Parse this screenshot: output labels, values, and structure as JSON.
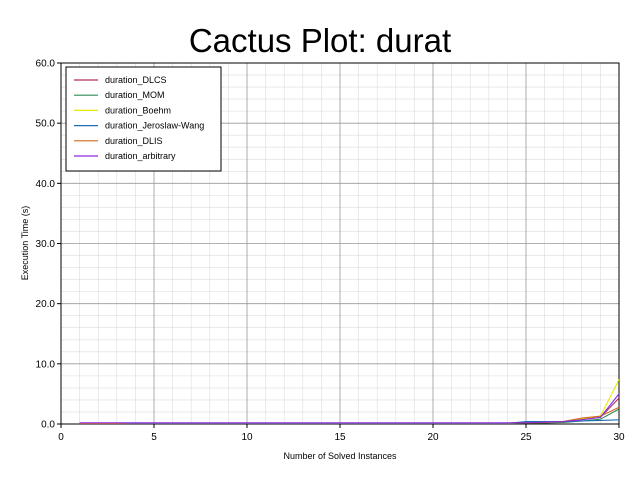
{
  "chart_data": {
    "type": "line",
    "title": "Cactus Plot: durat",
    "xlabel": "Number of Solved Instances",
    "ylabel": "Execution Time (s)",
    "xlim": [
      0,
      30
    ],
    "ylim": [
      0,
      60
    ],
    "xticks": [
      0,
      5,
      10,
      15,
      20,
      25,
      30
    ],
    "xtick_labels": [
      "0",
      "5",
      "10",
      "15",
      "20",
      "25",
      "30"
    ],
    "yticks": [
      0,
      10,
      20,
      30,
      40,
      50,
      60
    ],
    "ytick_labels": [
      "0.0",
      "10.0",
      "20.0",
      "30.0",
      "40.0",
      "50.0",
      "60.0"
    ],
    "grid": true,
    "legend_position": "top-left",
    "x": [
      1,
      2,
      3,
      4,
      5,
      6,
      7,
      8,
      9,
      10,
      11,
      12,
      13,
      14,
      15,
      16,
      17,
      18,
      19,
      20,
      21,
      22,
      23,
      24,
      25,
      26,
      27,
      28,
      29,
      30
    ],
    "series": [
      {
        "name": "duration_DLCS",
        "color": "#b03060",
        "values": [
          0.1,
          0.1,
          0.1,
          0.15,
          0.15,
          0.15,
          0.15,
          0.15,
          0.15,
          0.15,
          0.15,
          0.15,
          0.15,
          0.15,
          0.15,
          0.15,
          0.15,
          0.15,
          0.15,
          0.15,
          0.15,
          0.15,
          0.15,
          0.15,
          0.2,
          0.2,
          0.3,
          0.8,
          1.1,
          4.3
        ]
      },
      {
        "name": "duration_MOM",
        "color": "#2e8b57",
        "values": [
          0.1,
          0.1,
          0.1,
          0.1,
          0.1,
          0.1,
          0.1,
          0.1,
          0.1,
          0.1,
          0.1,
          0.1,
          0.1,
          0.1,
          0.1,
          0.1,
          0.1,
          0.1,
          0.1,
          0.1,
          0.1,
          0.1,
          0.1,
          0.1,
          0.15,
          0.2,
          0.25,
          0.5,
          0.8,
          2.5
        ]
      },
      {
        "name": "duration_Boehm",
        "color": "#e8e800",
        "values": [
          0.1,
          0.1,
          0.1,
          0.15,
          0.15,
          0.15,
          0.15,
          0.15,
          0.15,
          0.15,
          0.15,
          0.15,
          0.15,
          0.15,
          0.15,
          0.15,
          0.15,
          0.15,
          0.15,
          0.15,
          0.15,
          0.15,
          0.15,
          0.15,
          0.2,
          0.25,
          0.4,
          0.9,
          1.3,
          7.4
        ]
      },
      {
        "name": "duration_Jeroslaw-Wang",
        "color": "#1e6eb4",
        "values": [
          0.1,
          0.1,
          0.1,
          0.1,
          0.1,
          0.1,
          0.1,
          0.1,
          0.1,
          0.1,
          0.1,
          0.1,
          0.1,
          0.1,
          0.1,
          0.1,
          0.1,
          0.1,
          0.1,
          0.1,
          0.1,
          0.1,
          0.1,
          0.1,
          0.4,
          0.4,
          0.4,
          0.5,
          0.6,
          0.7
        ]
      },
      {
        "name": "duration_DLIS",
        "color": "#d2691e",
        "values": [
          0.1,
          0.1,
          0.1,
          0.15,
          0.15,
          0.15,
          0.15,
          0.15,
          0.15,
          0.15,
          0.15,
          0.15,
          0.15,
          0.15,
          0.15,
          0.15,
          0.15,
          0.15,
          0.15,
          0.15,
          0.15,
          0.15,
          0.15,
          0.15,
          0.2,
          0.25,
          0.4,
          1.0,
          1.3,
          2.8
        ]
      },
      {
        "name": "duration_arbitrary",
        "color": "#8a2be2",
        "values": [
          0.2,
          0.2,
          0.2,
          0.2,
          0.2,
          0.2,
          0.2,
          0.2,
          0.2,
          0.2,
          0.2,
          0.2,
          0.2,
          0.2,
          0.2,
          0.2,
          0.2,
          0.2,
          0.2,
          0.2,
          0.2,
          0.2,
          0.2,
          0.2,
          0.2,
          0.3,
          0.4,
          0.7,
          1.1,
          5.0
        ]
      }
    ]
  }
}
